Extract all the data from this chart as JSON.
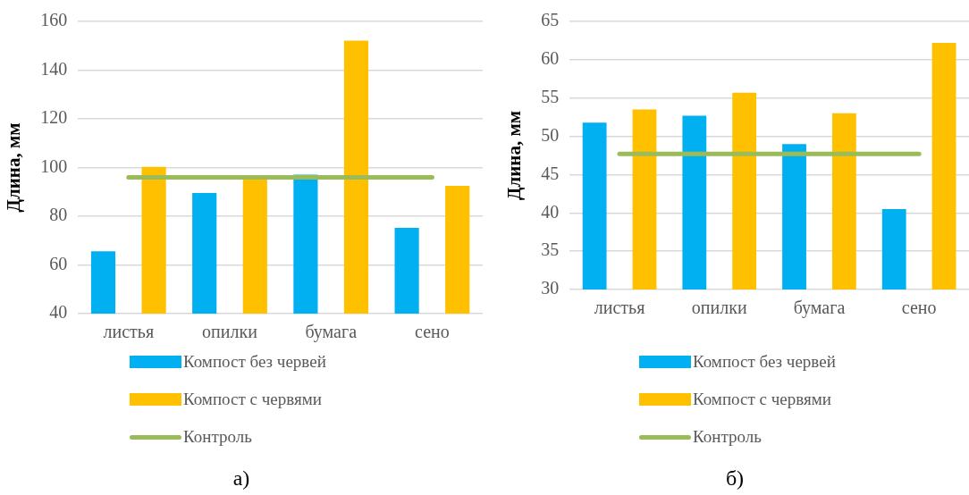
{
  "chart_data": [
    {
      "type": "bar",
      "categories": [
        "листья",
        "опилки",
        "бумага",
        "сено"
      ],
      "series": [
        {
          "name": "Компост без червей",
          "color": "#00b0f0",
          "values": [
            65.6,
            89.5,
            97.1,
            75.2
          ]
        },
        {
          "name": "Компост с червями",
          "color": "#ffc000",
          "values": [
            100.3,
            95.4,
            152.1,
            92.5
          ]
        },
        {
          "name": "Контроль",
          "type": "line",
          "color": "#9bbb59",
          "values": [
            96,
            96,
            96,
            96
          ]
        }
      ],
      "ylabel": "Длина, мм",
      "ylim": [
        40,
        160
      ],
      "yticks": [
        40,
        60,
        80,
        100,
        120,
        140,
        160
      ],
      "grid": "y",
      "legend": "bottom",
      "annotations": [
        "а)"
      ]
    },
    {
      "type": "bar",
      "categories": [
        "листья",
        "опилки",
        "бумага",
        "сено"
      ],
      "series": [
        {
          "name": "Компост без червей",
          "color": "#00b0f0",
          "values": [
            51.8,
            52.7,
            49.0,
            40.5
          ]
        },
        {
          "name": "Компост с червями",
          "color": "#ffc000",
          "values": [
            53.5,
            55.7,
            53.0,
            62.2
          ]
        },
        {
          "name": "Контроль",
          "type": "line",
          "color": "#9bbb59",
          "values": [
            47.7,
            47.7,
            47.7,
            47.7
          ]
        }
      ],
      "ylabel": "Длина, мм",
      "ylim": [
        30,
        65
      ],
      "yticks": [
        30,
        35,
        40,
        45,
        50,
        55,
        60,
        65
      ],
      "grid": "y",
      "legend": "bottom",
      "annotations": [
        "б)"
      ]
    }
  ]
}
